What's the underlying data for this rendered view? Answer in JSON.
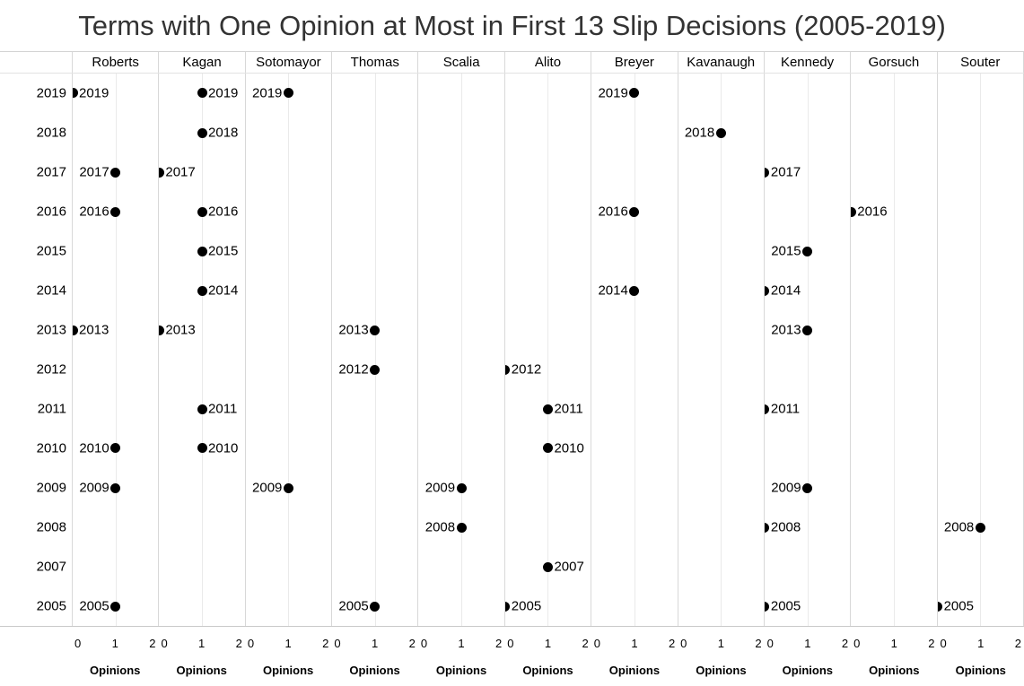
{
  "title": "Terms with One Opinion at Most in First 13 Slip Decisions (2005-2019)",
  "colors": {
    "mark": "#000000",
    "title_text": "#333333",
    "pane_border": "#d8d8d8",
    "gridline": "#eaeaea",
    "axis_line": "#c9c9c9"
  },
  "chart_data": {
    "type": "scatter",
    "subtype": "dot-plot-small-multiples",
    "title": "Terms with One Opinion at Most in First 13 Slip Decisions (2005-2019)",
    "legend": "none",
    "grid": true,
    "mark": "circle",
    "mark_color": "#000000",
    "columns": [
      "Roberts",
      "Kagan",
      "Sotomayor",
      "Thomas",
      "Scalia",
      "Alito",
      "Breyer",
      "Kavanaugh",
      "Kennedy",
      "Gorsuch",
      "Souter"
    ],
    "rows": [
      "2019",
      "2018",
      "2017",
      "2016",
      "2015",
      "2014",
      "2013",
      "2012",
      "2011",
      "2010",
      "2009",
      "2008",
      "2007",
      "2005"
    ],
    "x_axis": {
      "title": "Opinions",
      "ticks": [
        "0",
        "1",
        "2"
      ],
      "range": [
        0,
        2
      ]
    },
    "y_axis": {
      "title": "",
      "ticks": [
        "2019",
        "2018",
        "2017",
        "2016",
        "2015",
        "2014",
        "2013",
        "2012",
        "2011",
        "2010",
        "2009",
        "2008",
        "2007",
        "2005"
      ]
    },
    "points": [
      {
        "justice": "Roberts",
        "term": "2019",
        "opinions": 0,
        "label_side": "right"
      },
      {
        "justice": "Roberts",
        "term": "2017",
        "opinions": 1,
        "label_side": "left"
      },
      {
        "justice": "Roberts",
        "term": "2016",
        "opinions": 1,
        "label_side": "left"
      },
      {
        "justice": "Roberts",
        "term": "2013",
        "opinions": 0,
        "label_side": "right"
      },
      {
        "justice": "Roberts",
        "term": "2010",
        "opinions": 1,
        "label_side": "left"
      },
      {
        "justice": "Roberts",
        "term": "2009",
        "opinions": 1,
        "label_side": "left"
      },
      {
        "justice": "Roberts",
        "term": "2005",
        "opinions": 1,
        "label_side": "left"
      },
      {
        "justice": "Kagan",
        "term": "2019",
        "opinions": 1,
        "label_side": "right"
      },
      {
        "justice": "Kagan",
        "term": "2018",
        "opinions": 1,
        "label_side": "right"
      },
      {
        "justice": "Kagan",
        "term": "2017",
        "opinions": 0,
        "label_side": "right"
      },
      {
        "justice": "Kagan",
        "term": "2016",
        "opinions": 1,
        "label_side": "right"
      },
      {
        "justice": "Kagan",
        "term": "2015",
        "opinions": 1,
        "label_side": "right"
      },
      {
        "justice": "Kagan",
        "term": "2014",
        "opinions": 1,
        "label_side": "right"
      },
      {
        "justice": "Kagan",
        "term": "2013",
        "opinions": 0,
        "label_side": "right"
      },
      {
        "justice": "Kagan",
        "term": "2011",
        "opinions": 1,
        "label_side": "right"
      },
      {
        "justice": "Kagan",
        "term": "2010",
        "opinions": 1,
        "label_side": "right"
      },
      {
        "justice": "Sotomayor",
        "term": "2019",
        "opinions": 1,
        "label_side": "left"
      },
      {
        "justice": "Sotomayor",
        "term": "2009",
        "opinions": 1,
        "label_side": "left"
      },
      {
        "justice": "Thomas",
        "term": "2013",
        "opinions": 1,
        "label_side": "left"
      },
      {
        "justice": "Thomas",
        "term": "2012",
        "opinions": 1,
        "label_side": "left"
      },
      {
        "justice": "Thomas",
        "term": "2005",
        "opinions": 1,
        "label_side": "left"
      },
      {
        "justice": "Scalia",
        "term": "2009",
        "opinions": 1,
        "label_side": "left"
      },
      {
        "justice": "Scalia",
        "term": "2008",
        "opinions": 1,
        "label_side": "left"
      },
      {
        "justice": "Alito",
        "term": "2012",
        "opinions": 0,
        "label_side": "right"
      },
      {
        "justice": "Alito",
        "term": "2011",
        "opinions": 1,
        "label_side": "right"
      },
      {
        "justice": "Alito",
        "term": "2010",
        "opinions": 1,
        "label_side": "right"
      },
      {
        "justice": "Alito",
        "term": "2007",
        "opinions": 1,
        "label_side": "right"
      },
      {
        "justice": "Alito",
        "term": "2005",
        "opinions": 0,
        "label_side": "right"
      },
      {
        "justice": "Breyer",
        "term": "2019",
        "opinions": 1,
        "label_side": "left"
      },
      {
        "justice": "Breyer",
        "term": "2016",
        "opinions": 1,
        "label_side": "left"
      },
      {
        "justice": "Breyer",
        "term": "2014",
        "opinions": 1,
        "label_side": "left"
      },
      {
        "justice": "Kavanaugh",
        "term": "2018",
        "opinions": 1,
        "label_side": "left"
      },
      {
        "justice": "Kennedy",
        "term": "2017",
        "opinions": 0,
        "label_side": "right"
      },
      {
        "justice": "Kennedy",
        "term": "2015",
        "opinions": 1,
        "label_side": "left"
      },
      {
        "justice": "Kennedy",
        "term": "2014",
        "opinions": 0,
        "label_side": "right"
      },
      {
        "justice": "Kennedy",
        "term": "2013",
        "opinions": 1,
        "label_side": "left"
      },
      {
        "justice": "Kennedy",
        "term": "2011",
        "opinions": 0,
        "label_side": "right"
      },
      {
        "justice": "Kennedy",
        "term": "2009",
        "opinions": 1,
        "label_side": "left"
      },
      {
        "justice": "Kennedy",
        "term": "2008",
        "opinions": 0,
        "label_side": "right"
      },
      {
        "justice": "Kennedy",
        "term": "2005",
        "opinions": 0,
        "label_side": "right"
      },
      {
        "justice": "Gorsuch",
        "term": "2016",
        "opinions": 0,
        "label_side": "right"
      },
      {
        "justice": "Souter",
        "term": "2008",
        "opinions": 1,
        "label_side": "left"
      },
      {
        "justice": "Souter",
        "term": "2005",
        "opinions": 0,
        "label_side": "right"
      }
    ]
  }
}
